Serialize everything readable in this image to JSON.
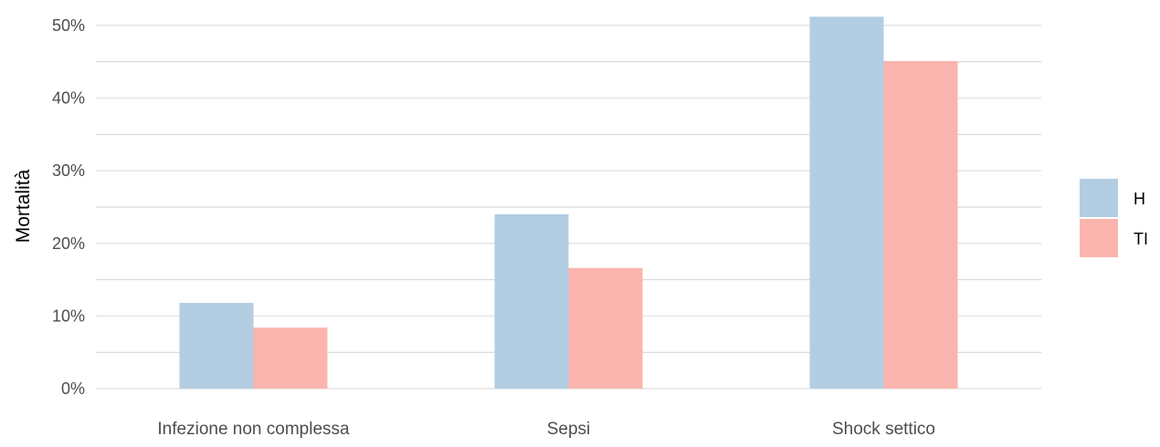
{
  "chart_data": {
    "type": "bar",
    "title": "",
    "xlabel": "",
    "ylabel": "Mortalità",
    "categories": [
      "Infezione non complessa",
      "Sepsi",
      "Shock settico"
    ],
    "series": [
      {
        "name": "H",
        "values": [
          11.8,
          24.0,
          51.2
        ],
        "color": "#b3cde3"
      },
      {
        "name": "TI",
        "values": [
          8.4,
          16.6,
          45.1
        ],
        "color": "#fbb4ae"
      }
    ],
    "ylim": [
      0,
      52.5
    ],
    "yticks": [
      0,
      10,
      20,
      30,
      40,
      50
    ],
    "ytick_labels": [
      "0%",
      "10%",
      "20%",
      "30%",
      "40%",
      "50%"
    ],
    "grid": true,
    "legend_position": "right"
  }
}
